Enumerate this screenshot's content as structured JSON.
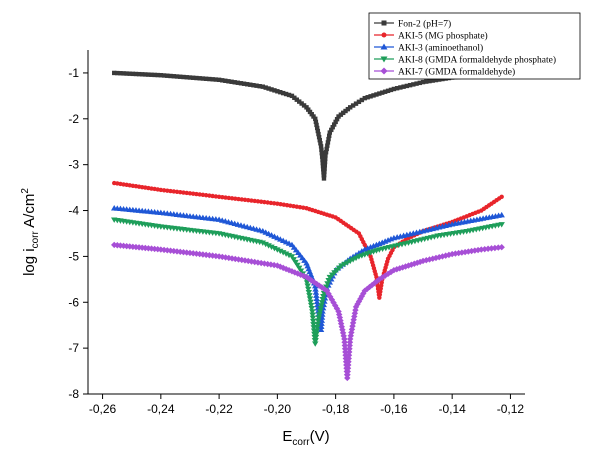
{
  "chart_data": {
    "type": "scatter",
    "title": "",
    "xlabel": {
      "main": "E",
      "sub": "corr",
      "unit": "(V)"
    },
    "ylabel": {
      "main": "log i",
      "sub": "corr",
      "unit": " A/cm",
      "sup": "2"
    },
    "xlim": [
      -0.265,
      -0.115
    ],
    "ylim": [
      -8.0,
      -0.5
    ],
    "xticks": [
      -0.26,
      -0.24,
      -0.22,
      -0.2,
      -0.18,
      -0.16,
      -0.14,
      -0.12
    ],
    "xtick_labels": [
      "-0,26",
      "-0,24",
      "-0,22",
      "-0,20",
      "-0,18",
      "-0,16",
      "-0,14",
      "-0,12"
    ],
    "yticks": [
      -1,
      -2,
      -3,
      -4,
      -5,
      -6,
      -7,
      -8
    ],
    "ytick_labels": [
      "-1",
      "-2",
      "-3",
      "-4",
      "-5",
      "-6",
      "-7",
      "-8"
    ],
    "grid": false,
    "legend_position": "top-right",
    "series": [
      {
        "name": "Fon-2 (pH=7)",
        "color": "#3a3a3a",
        "marker": "square",
        "x": [
          -0.256,
          -0.24,
          -0.22,
          -0.205,
          -0.195,
          -0.19,
          -0.187,
          -0.185,
          -0.1845,
          -0.184,
          -0.1835,
          -0.182,
          -0.179,
          -0.175,
          -0.17,
          -0.16,
          -0.15,
          -0.14,
          -0.123
        ],
        "y": [
          -1.0,
          -1.05,
          -1.15,
          -1.3,
          -1.5,
          -1.75,
          -2.0,
          -2.6,
          -2.9,
          -3.3,
          -2.8,
          -2.3,
          -1.95,
          -1.75,
          -1.55,
          -1.35,
          -1.2,
          -1.1,
          -1.02
        ]
      },
      {
        "name": "AKI-5 (MG phosphate)",
        "color": "#e8252b",
        "marker": "circle",
        "x": [
          -0.256,
          -0.24,
          -0.22,
          -0.2,
          -0.19,
          -0.18,
          -0.172,
          -0.168,
          -0.166,
          -0.165,
          -0.164,
          -0.162,
          -0.16,
          -0.155,
          -0.15,
          -0.14,
          -0.13,
          -0.123
        ],
        "y": [
          -3.4,
          -3.55,
          -3.7,
          -3.85,
          -3.95,
          -4.15,
          -4.5,
          -5.0,
          -5.45,
          -5.9,
          -5.5,
          -5.05,
          -4.8,
          -4.6,
          -4.45,
          -4.25,
          -4.0,
          -3.7
        ]
      },
      {
        "name": "AKI-3 (aminoethanol)",
        "color": "#1f57d6",
        "marker": "triangle-up",
        "x": [
          -0.256,
          -0.24,
          -0.22,
          -0.205,
          -0.195,
          -0.19,
          -0.187,
          -0.186,
          -0.185,
          -0.1845,
          -0.183,
          -0.18,
          -0.175,
          -0.17,
          -0.16,
          -0.15,
          -0.14,
          -0.123
        ],
        "y": [
          -3.95,
          -4.05,
          -4.2,
          -4.45,
          -4.75,
          -5.15,
          -5.65,
          -6.2,
          -6.6,
          -6.2,
          -5.7,
          -5.3,
          -5.05,
          -4.85,
          -4.6,
          -4.45,
          -4.3,
          -4.1
        ]
      },
      {
        "name": "AKI-8 (GMDA formaldehyde phosphate)",
        "color": "#1e9e5a",
        "marker": "triangle-down",
        "x": [
          -0.256,
          -0.24,
          -0.22,
          -0.205,
          -0.195,
          -0.19,
          -0.188,
          -0.187,
          -0.186,
          -0.184,
          -0.182,
          -0.178,
          -0.172,
          -0.165,
          -0.155,
          -0.145,
          -0.135,
          -0.123
        ],
        "y": [
          -4.2,
          -4.35,
          -4.5,
          -4.7,
          -5.0,
          -5.5,
          -6.2,
          -6.9,
          -6.4,
          -5.8,
          -5.45,
          -5.2,
          -5.0,
          -4.85,
          -4.7,
          -4.55,
          -4.45,
          -4.3
        ]
      },
      {
        "name": "AKI-7 (GMDA formaldehyde)",
        "color": "#a74fd6",
        "marker": "diamond",
        "x": [
          -0.256,
          -0.24,
          -0.22,
          -0.2,
          -0.19,
          -0.183,
          -0.179,
          -0.177,
          -0.176,
          -0.175,
          -0.173,
          -0.17,
          -0.165,
          -0.16,
          -0.15,
          -0.14,
          -0.13,
          -0.123
        ],
        "y": [
          -4.75,
          -4.85,
          -5.0,
          -5.2,
          -5.45,
          -5.75,
          -6.2,
          -6.8,
          -7.65,
          -6.8,
          -6.1,
          -5.75,
          -5.5,
          -5.3,
          -5.1,
          -4.95,
          -4.85,
          -4.8
        ]
      }
    ]
  }
}
